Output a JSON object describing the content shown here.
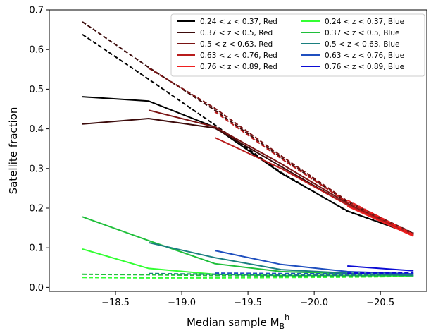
{
  "chart_data": {
    "type": "line",
    "xlabel_main": "Median sample M",
    "xlabel_sub": "B",
    "xlabel_sup": "h",
    "ylabel": "Satellite fraction",
    "xlim": [
      -18.0,
      -20.85
    ],
    "ylim": [
      -0.01,
      0.7
    ],
    "x_ticks": [
      -18.5,
      -19.0,
      -19.5,
      -20.0,
      -20.5
    ],
    "x_tick_labels": [
      "−18.5",
      "−19.0",
      "−19.5",
      "−20.0",
      "−20.5"
    ],
    "y_ticks": [
      0.0,
      0.1,
      0.2,
      0.3,
      0.4,
      0.5,
      0.6,
      0.7
    ],
    "y_tick_labels": [
      "0.0",
      "0.1",
      "0.2",
      "0.3",
      "0.4",
      "0.5",
      "0.6",
      "0.7"
    ],
    "grid": false,
    "legend_position": "top-right",
    "series": [
      {
        "name": "0.24 < z < 0.37, Red",
        "color": "#000000",
        "legend_col": 0,
        "solid": {
          "x": [
            -18.25,
            -18.75,
            -19.25,
            -19.75,
            -20.25,
            -20.75
          ],
          "y": [
            0.481,
            0.47,
            0.404,
            0.288,
            0.193,
            0.133
          ]
        },
        "dashed": {
          "x": [
            -18.25,
            -18.75,
            -19.25,
            -19.75,
            -20.25,
            -20.75
          ],
          "y": [
            0.638,
            0.525,
            0.41,
            0.29,
            0.192,
            0.135
          ]
        }
      },
      {
        "name": "0.37 < z < 0.5, Red",
        "color": "#3c0b0b",
        "legend_col": 0,
        "solid": {
          "x": [
            -18.25,
            -18.75,
            -19.25,
            -19.75,
            -20.25,
            -20.75
          ],
          "y": [
            0.412,
            0.426,
            0.402,
            0.305,
            0.208,
            0.136
          ]
        },
        "dashed": {
          "x": [
            -18.25,
            -18.75,
            -19.25,
            -19.75,
            -20.25,
            -20.75
          ],
          "y": [
            0.67,
            0.555,
            0.447,
            0.328,
            0.215,
            0.137
          ]
        }
      },
      {
        "name": "0.5 < z < 0.63, Red",
        "color": "#7a1313",
        "legend_col": 0,
        "solid": {
          "x": [
            -18.75,
            -19.25,
            -19.75,
            -20.25,
            -20.75
          ],
          "y": [
            0.447,
            0.405,
            0.312,
            0.212,
            0.133
          ]
        },
        "dashed": {
          "x": [
            -18.75,
            -19.25,
            -19.75,
            -20.25,
            -20.75
          ],
          "y": [
            0.553,
            0.452,
            0.332,
            0.218,
            0.135
          ]
        }
      },
      {
        "name": "0.63 < z < 0.76, Red",
        "color": "#b81c1c",
        "legend_col": 0,
        "solid": {
          "x": [
            -19.25,
            -19.75,
            -20.25,
            -20.75
          ],
          "y": [
            0.378,
            0.3,
            0.208,
            0.131
          ]
        },
        "dashed": {
          "x": [
            -19.25,
            -19.75,
            -20.25,
            -20.75
          ],
          "y": [
            0.443,
            0.325,
            0.215,
            0.132
          ]
        }
      },
      {
        "name": "0.76 < z < 0.89, Red",
        "color": "#ef1f1f",
        "legend_col": 0,
        "solid": {
          "x": [
            -20.25,
            -20.75
          ],
          "y": [
            0.205,
            0.129
          ]
        },
        "dashed": {
          "x": [
            -20.25,
            -20.75
          ],
          "y": [
            0.22,
            0.133
          ]
        }
      },
      {
        "name": "0.24 < z < 0.37, Blue",
        "color": "#33ff33",
        "legend_col": 1,
        "solid": {
          "x": [
            -18.25,
            -18.75,
            -19.25,
            -19.75,
            -20.25,
            -20.75
          ],
          "y": [
            0.097,
            0.048,
            0.033,
            0.03,
            0.03,
            0.029
          ]
        },
        "dashed": {
          "x": [
            -18.25,
            -18.75,
            -19.25,
            -19.75,
            -20.25,
            -20.75
          ],
          "y": [
            0.025,
            0.024,
            0.024,
            0.025,
            0.026,
            0.028
          ]
        }
      },
      {
        "name": "0.37 < z < 0.5, Blue",
        "color": "#1fbf3a",
        "legend_col": 1,
        "solid": {
          "x": [
            -18.25,
            -18.75,
            -19.25,
            -19.75,
            -20.25,
            -20.75
          ],
          "y": [
            0.178,
            0.118,
            0.06,
            0.04,
            0.035,
            0.031
          ]
        },
        "dashed": {
          "x": [
            -18.25,
            -18.75,
            -19.25,
            -19.75,
            -20.25,
            -20.75
          ],
          "y": [
            0.033,
            0.032,
            0.03,
            0.029,
            0.029,
            0.03
          ]
        }
      },
      {
        "name": "0.5 < z < 0.63, Blue",
        "color": "#1a7f7f",
        "legend_col": 1,
        "solid": {
          "x": [
            -18.75,
            -19.25,
            -19.75,
            -20.25,
            -20.75
          ],
          "y": [
            0.113,
            0.075,
            0.045,
            0.036,
            0.03
          ]
        },
        "dashed": {
          "x": [
            -18.75,
            -19.25,
            -19.75,
            -20.25,
            -20.75
          ],
          "y": [
            0.035,
            0.033,
            0.031,
            0.031,
            0.032
          ]
        }
      },
      {
        "name": "0.63 < z < 0.76, Blue",
        "color": "#1f4fbf",
        "legend_col": 1,
        "solid": {
          "x": [
            -19.25,
            -19.75,
            -20.25,
            -20.75
          ],
          "y": [
            0.093,
            0.058,
            0.04,
            0.034
          ]
        },
        "dashed": {
          "x": [
            -19.25,
            -19.75,
            -20.25,
            -20.75
          ],
          "y": [
            0.036,
            0.035,
            0.034,
            0.035
          ]
        }
      },
      {
        "name": "0.76 < z < 0.89, Blue",
        "color": "#0b0bd4",
        "legend_col": 1,
        "solid": {
          "x": [
            -20.25,
            -20.75
          ],
          "y": [
            0.054,
            0.042
          ]
        },
        "dashed": {
          "x": [
            -20.25,
            -20.75
          ],
          "y": [
            0.036,
            0.037
          ]
        }
      }
    ]
  }
}
